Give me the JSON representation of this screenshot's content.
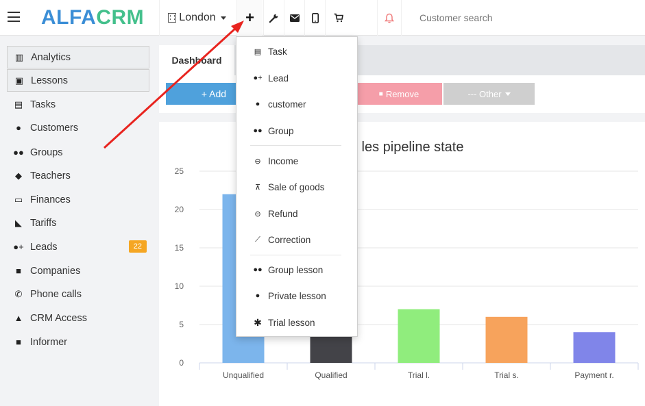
{
  "topbar": {
    "logo_part1": "ALFA",
    "logo_part2": "CRM",
    "city": "London",
    "plus_label": "+",
    "search_placeholder": "Customer search",
    "icons": [
      "wrench-icon",
      "envelope-icon",
      "mobile-icon",
      "cart-icon",
      "bell-icon"
    ]
  },
  "sidebar": {
    "items": [
      {
        "label": "Analytics",
        "icon": "map-icon"
      },
      {
        "label": "Lessons",
        "icon": "calendar-icon"
      },
      {
        "label": "Tasks",
        "icon": "clipboard-icon"
      },
      {
        "label": "Customers",
        "icon": "user-icon"
      },
      {
        "label": "Groups",
        "icon": "users-icon"
      },
      {
        "label": "Teachers",
        "icon": "graduation-cap-icon"
      },
      {
        "label": "Finances",
        "icon": "money-icon"
      },
      {
        "label": "Tariffs",
        "icon": "tag-icon"
      },
      {
        "label": "Leads",
        "icon": "user-plus-icon",
        "badge": "22"
      },
      {
        "label": "Companies",
        "icon": "briefcase-icon"
      },
      {
        "label": "Phone calls",
        "icon": "phone-icon"
      },
      {
        "label": "CRM Access",
        "icon": "lock-icon"
      },
      {
        "label": "Informer",
        "icon": "square-icon"
      }
    ]
  },
  "tabs": {
    "dashboard": "Dashboard"
  },
  "actions": {
    "add": "+ Add",
    "remove": "Remove",
    "other": "--- Other"
  },
  "dropdown": {
    "items": [
      {
        "label": "Task",
        "icon": "clipboard-icon"
      },
      {
        "label": "Lead",
        "icon": "user-plus-icon"
      },
      {
        "label": "customer",
        "icon": "user-icon"
      },
      {
        "label": "Group",
        "icon": "users-icon"
      },
      {
        "label": "Income",
        "icon": "sign-in-icon"
      },
      {
        "label": "Sale of goods",
        "icon": "cart-icon"
      },
      {
        "label": "Refund",
        "icon": "minus-circle-icon"
      },
      {
        "label": "Correction",
        "icon": "magic-wand-icon"
      },
      {
        "label": "Group lesson",
        "icon": "users-icon"
      },
      {
        "label": "Private lesson",
        "icon": "user-icon"
      },
      {
        "label": "Trial lesson",
        "icon": "asterisk-icon"
      }
    ]
  },
  "chart_data": {
    "type": "bar",
    "title": "les pipeline state",
    "categories": [
      "Unqualified",
      "Qualified",
      "Trial l.",
      "Trial s.",
      "Payment r."
    ],
    "values": [
      22,
      9,
      7,
      6,
      4
    ],
    "colors": [
      "#7cb5ec",
      "#434348",
      "#90ed7d",
      "#f7a35c",
      "#8085e9"
    ],
    "ylim": [
      0,
      25
    ],
    "yticks": [
      0,
      5,
      10,
      15,
      20,
      25
    ],
    "grid": true
  },
  "colors": {
    "logo_blue": "#3b8ed6",
    "logo_green": "#44c08c",
    "add": "#4fa1dc",
    "remove": "#f59ea9",
    "other": "#cfcfcf",
    "badge": "#f5a623",
    "arrow": "#e8241f"
  }
}
